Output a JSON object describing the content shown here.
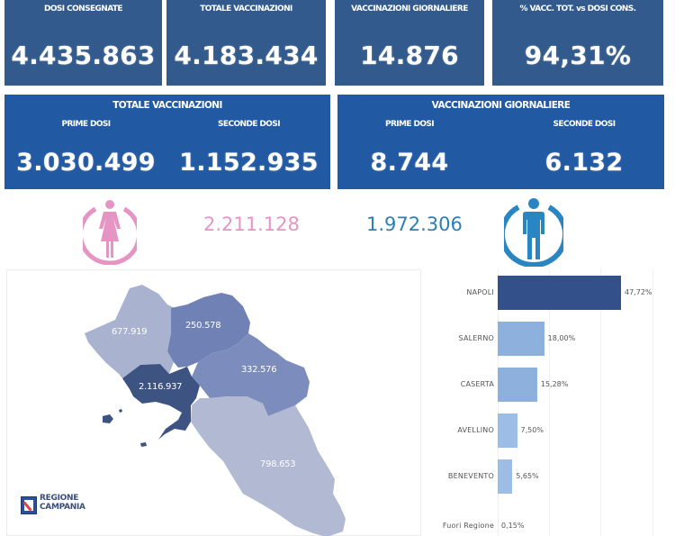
{
  "top_cards": [
    {
      "label": "DOSI CONSEGNATE",
      "value": "4.435.863"
    },
    {
      "label": "TOTALE VACCINAZIONI",
      "value": "4.183.434"
    },
    {
      "label": "VACCINAZIONI GIORNALIERE",
      "value": "14.876"
    },
    {
      "label": "% VACC. TOT. vs DOSI CONS.",
      "value": "94,31%"
    }
  ],
  "totals_card": {
    "title": "TOTALE VACCINAZIONI",
    "first_label": "PRIME DOSI",
    "first_value": "3.030.499",
    "second_label": "SECONDE DOSI",
    "second_value": "1.152.935"
  },
  "daily_card": {
    "title": "VACCINAZIONI GIORNALIERE",
    "first_label": "PRIME DOSI",
    "first_value": "8.744",
    "second_label": "SECONDE DOSI",
    "second_value": "6.132"
  },
  "gender": {
    "female_icon": "female-person-icon",
    "female_value": "2.211.128",
    "female_color": "#e07bb5",
    "male_icon": "male-person-icon",
    "male_value": "1.972.306",
    "male_color": "#2a86c2"
  },
  "map": {
    "provinces": [
      {
        "name": "Caserta",
        "value": "677.919",
        "color": "#a9b3cf"
      },
      {
        "name": "Benevento",
        "value": "250.578",
        "color": "#6f81b5"
      },
      {
        "name": "Avellino",
        "value": "332.576",
        "color": "#7c8dbd"
      },
      {
        "name": "Napoli",
        "value": "2.116.937",
        "color": "#3d5482"
      },
      {
        "name": "Salerno",
        "value": "798.653",
        "color": "#b1b9d3"
      }
    ],
    "logo_line1": "REGIONE",
    "logo_line2": "CAMPANIA"
  },
  "chart_data": {
    "type": "bar",
    "orientation": "horizontal",
    "categories": [
      "NAPOLI",
      "SALERNO",
      "CASERTA",
      "AVELLINO",
      "BENEVENTO",
      "Fuori Regione"
    ],
    "values": [
      47.72,
      18.0,
      15.28,
      7.5,
      5.65,
      0.15
    ],
    "value_labels": [
      "47,72%",
      "18,00%",
      "15,28%",
      "7,50%",
      "5,65%",
      "0,15%"
    ],
    "colors": [
      "#34508a",
      "#8eb0dc",
      "#8eb0dc",
      "#9dbde6",
      "#9dbde6",
      "#9dbde6"
    ],
    "title": "",
    "xlabel": "",
    "ylabel": "",
    "xlim": [
      0,
      60
    ],
    "grid": true
  }
}
